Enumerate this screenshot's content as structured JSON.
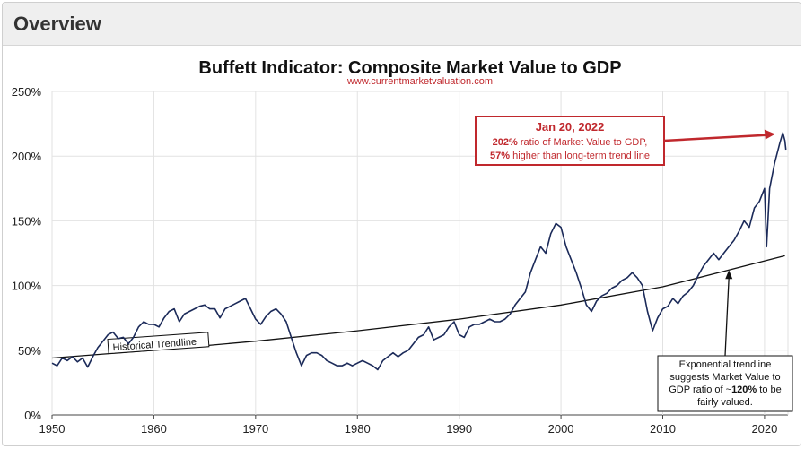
{
  "header": {
    "title": "Overview"
  },
  "chart_data": {
    "type": "line",
    "title": "Buffett Indicator: Composite Market Value to GDP",
    "subtitle": "www.currentmarketvaluation.com",
    "xlabel": "",
    "ylabel": "",
    "xlim": [
      1950,
      2022.3
    ],
    "ylim": [
      0,
      250
    ],
    "x_ticks": [
      "1950",
      "1960",
      "1970",
      "1980",
      "1990",
      "2000",
      "2010",
      "2020"
    ],
    "y_ticks": [
      "0%",
      "50%",
      "100%",
      "150%",
      "200%",
      "250%"
    ],
    "grid": true,
    "colors": {
      "series": "#1b2a59",
      "trend": "#111111",
      "annotation": "#c0282d"
    },
    "series": [
      {
        "x": [
          1950.0,
          1950.5,
          1951.0,
          1951.5,
          1952.0,
          1952.5,
          1953.0,
          1953.5,
          1954.0,
          1954.5,
          1955.0,
          1955.5,
          1956.0,
          1956.5,
          1957.0,
          1957.5,
          1958.0,
          1958.5,
          1959.0,
          1959.5,
          1960.0,
          1960.5,
          1961.0,
          1961.5,
          1962.0,
          1962.5,
          1963.0,
          1963.5,
          1964.0,
          1964.5,
          1965.0,
          1965.5,
          1966.0,
          1966.5,
          1967.0,
          1967.5,
          1968.0,
          1968.5,
          1969.0,
          1969.5,
          1970.0,
          1970.5,
          1971.0,
          1971.5,
          1972.0,
          1972.5,
          1973.0,
          1973.5,
          1974.0,
          1974.5,
          1975.0,
          1975.5,
          1976.0,
          1976.5,
          1977.0,
          1977.5,
          1978.0,
          1978.5,
          1979.0,
          1979.5,
          1980.0,
          1980.5,
          1981.0,
          1981.5,
          1982.0,
          1982.5,
          1983.0,
          1983.5,
          1984.0,
          1984.5,
          1985.0,
          1985.5,
          1986.0,
          1986.5,
          1987.0,
          1987.5,
          1988.0,
          1988.5,
          1989.0,
          1989.5,
          1990.0,
          1990.5,
          1991.0,
          1991.5,
          1992.0,
          1992.5,
          1993.0,
          1993.5,
          1994.0,
          1994.5,
          1995.0,
          1995.5,
          1996.0,
          1996.5,
          1997.0,
          1997.5,
          1998.0,
          1998.5,
          1999.0,
          1999.5,
          2000.0,
          2000.5,
          2001.0,
          2001.5,
          2002.0,
          2002.5,
          2003.0,
          2003.5,
          2004.0,
          2004.5,
          2005.0,
          2005.5,
          2006.0,
          2006.5,
          2007.0,
          2007.5,
          2008.0,
          2008.5,
          2009.0,
          2009.5,
          2010.0,
          2010.5,
          2011.0,
          2011.5,
          2012.0,
          2012.5,
          2013.0,
          2013.5,
          2014.0,
          2014.5,
          2015.0,
          2015.5,
          2016.0,
          2016.5,
          2017.0,
          2017.5,
          2018.0,
          2018.5,
          2019.0,
          2019.5,
          2020.0,
          2020.2,
          2020.5,
          2021.0,
          2021.5,
          2021.8,
          2022.0,
          2022.1
        ],
        "values": [
          40,
          38,
          44,
          42,
          45,
          41,
          44,
          37,
          45,
          52,
          57,
          62,
          64,
          59,
          60,
          55,
          60,
          68,
          72,
          70,
          70,
          68,
          75,
          80,
          82,
          72,
          78,
          80,
          82,
          84,
          85,
          82,
          82,
          75,
          82,
          84,
          86,
          88,
          90,
          82,
          74,
          70,
          76,
          80,
          82,
          78,
          72,
          60,
          48,
          38,
          46,
          48,
          48,
          46,
          42,
          40,
          38,
          38,
          40,
          38,
          40,
          42,
          40,
          38,
          35,
          42,
          45,
          48,
          45,
          48,
          50,
          55,
          60,
          62,
          68,
          58,
          60,
          62,
          68,
          72,
          62,
          60,
          68,
          70,
          70,
          72,
          74,
          72,
          72,
          74,
          78,
          85,
          90,
          95,
          110,
          120,
          130,
          125,
          140,
          148,
          145,
          130,
          120,
          110,
          98,
          85,
          80,
          88,
          92,
          94,
          98,
          100,
          104,
          106,
          110,
          106,
          100,
          80,
          65,
          75,
          82,
          84,
          90,
          86,
          92,
          95,
          100,
          108,
          115,
          120,
          125,
          120,
          125,
          130,
          135,
          142,
          150,
          145,
          160,
          165,
          175,
          130,
          175,
          195,
          210,
          218,
          212,
          205
        ],
        "name": ""
      }
    ],
    "trendline": {
      "label": "Historical Trendline",
      "x": [
        1950,
        1960,
        1970,
        1980,
        1990,
        2000,
        2010,
        2022
      ],
      "values": [
        44,
        50,
        57,
        65,
        74,
        85,
        99,
        123
      ]
    },
    "annotations": [
      {
        "date": "Jan 20, 2022",
        "line1_bold": "202%",
        "line1": " ratio of Market Value to GDP,",
        "line2_bold": "57%",
        "line2": " higher than long-term trend line",
        "target_x": 2021.05,
        "target_y": 217
      },
      {
        "line1": "Exponential trendline",
        "line2": "suggests Market Value to",
        "line3_pre": "GDP ratio of ~",
        "line3_bold": "120%",
        "line3_post": " to be",
        "line4": "fairly valued.",
        "target_x": 2016.5,
        "target_y": 112
      }
    ]
  }
}
